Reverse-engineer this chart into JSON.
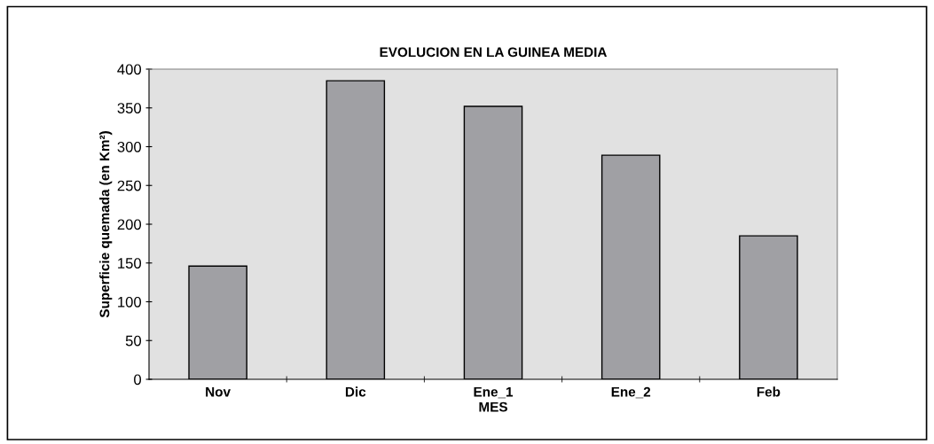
{
  "chart_data": {
    "type": "bar",
    "title": "EVOLUCION EN LA GUINEA MEDIA",
    "xlabel": "MES",
    "ylabel": "Superficie quemada (en Km²)",
    "categories": [
      "Nov",
      "Dic",
      "Ene_1",
      "Ene_2",
      "Feb"
    ],
    "values": [
      146,
      385,
      352,
      289,
      185
    ],
    "color": "#a0a0a4",
    "ylim": [
      0,
      400
    ],
    "yticks": [
      0,
      50,
      100,
      150,
      200,
      250,
      300,
      350,
      400
    ],
    "grid": false,
    "legend": false
  }
}
